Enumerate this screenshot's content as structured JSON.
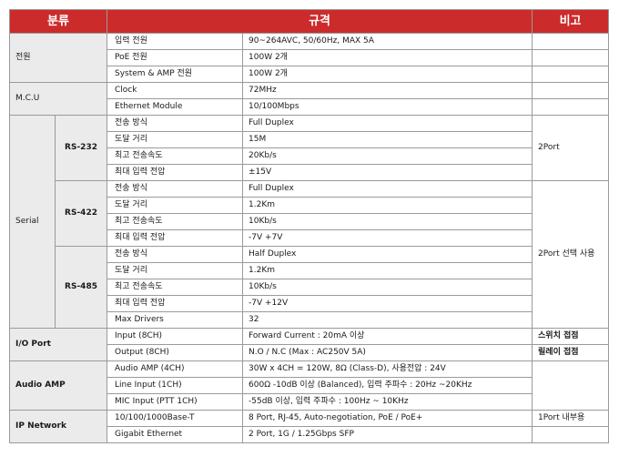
{
  "header": {
    "category": "분류",
    "spec": "규격",
    "note": "비고"
  },
  "power": {
    "label": "전원",
    "rows": [
      {
        "item": "입력 전원",
        "value": "90~264AVC, 50/60Hz, MAX 5A"
      },
      {
        "item": "PoE 전원",
        "value": "100W 2개"
      },
      {
        "item": "System & AMP 전원",
        "value": "100W 2개"
      }
    ]
  },
  "mcu": {
    "label": "M.C.U",
    "rows": [
      {
        "item": "Clock",
        "value": "72MHz"
      },
      {
        "item": "Ethernet Module",
        "value": "10/100Mbps"
      }
    ]
  },
  "serial": {
    "label": "Serial",
    "rs232": {
      "label": "RS-232",
      "note": "2Port",
      "rows": [
        {
          "item": "전송 방식",
          "value": "Full Duplex"
        },
        {
          "item": "도달 거리",
          "value": "15M"
        },
        {
          "item": "최고 전송속도",
          "value": "20Kb/s"
        },
        {
          "item": "최대 입력 전압",
          "value": "±15V"
        }
      ]
    },
    "rs422": {
      "label": "RS-422",
      "rows": [
        {
          "item": "전송 방식",
          "value": "Full Duplex"
        },
        {
          "item": "도달 거리",
          "value": "1.2Km"
        },
        {
          "item": "최고 전송속도",
          "value": "10Kb/s"
        },
        {
          "item": "최대 입력 전압",
          "value": "-7V +7V"
        }
      ]
    },
    "rs485": {
      "label": "RS-485",
      "rows": [
        {
          "item": "전송 방식",
          "value": "Half Duplex"
        },
        {
          "item": "도달 거리",
          "value": "1.2Km"
        },
        {
          "item": "최고 전송속도",
          "value": "10Kb/s"
        },
        {
          "item": "최대 입력 전압",
          "value": "-7V +12V"
        },
        {
          "item": "Max Drivers",
          "value": "32"
        }
      ]
    },
    "rs422_485_note": "2Port 선택 사용"
  },
  "io_port": {
    "label": "I/O Port",
    "rows": [
      {
        "item": "Input (8CH)",
        "value": "Forward Current : 20mA 이상",
        "note": "스위치 접점"
      },
      {
        "item": "Output (8CH)",
        "value": "N.O / N.C (Max : AC250V 5A)",
        "note": "릴레이 접점"
      }
    ]
  },
  "audio_amp": {
    "label": "Audio AMP",
    "rows": [
      {
        "item": "Audio AMP (4CH)",
        "value": "30W x 4CH = 120W, 8Ω (Class-D), 사용전압 : 24V"
      },
      {
        "item": "Line Input (1CH)",
        "value": "600Ω -10dB 이상 (Balanced), 입력 주파수 : 20Hz ~20KHz"
      },
      {
        "item": "MIC Input (PTT 1CH)",
        "value": "-55dB 이상, 입력 주파수 : 100Hz ~ 10KHz"
      }
    ]
  },
  "ip_network": {
    "label": "IP Network",
    "rows": [
      {
        "item": "10/100/1000Base-T",
        "value": "8 Port, RJ-45, Auto-negotiation, PoE / PoE+",
        "note": "1Port 내부용"
      },
      {
        "item": "Gigabit Ethernet",
        "value": "2 Port, 1G / 1.25Gbps SFP",
        "note": ""
      }
    ]
  }
}
